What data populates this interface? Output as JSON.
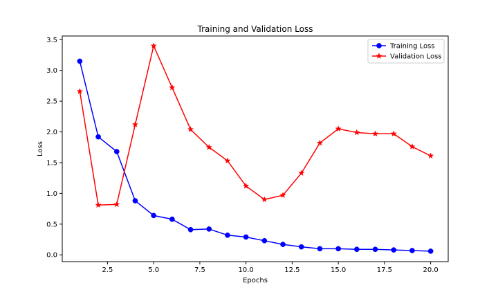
{
  "chart_data": {
    "type": "line",
    "title": "Training and Validation Loss",
    "xlabel": "Epochs",
    "ylabel": "Loss",
    "xlim": [
      0.05,
      20.95
    ],
    "ylim": [
      -0.11,
      3.56
    ],
    "x": [
      1,
      2,
      3,
      4,
      5,
      6,
      7,
      8,
      9,
      10,
      11,
      12,
      13,
      14,
      15,
      16,
      17,
      18,
      19,
      20
    ],
    "xticks": [
      2.5,
      5.0,
      7.5,
      10.0,
      12.5,
      15.0,
      17.5,
      20.0
    ],
    "xtick_labels": [
      "2.5",
      "5.0",
      "7.5",
      "10.0",
      "12.5",
      "15.0",
      "17.5",
      "20.0"
    ],
    "yticks": [
      0.0,
      0.5,
      1.0,
      1.5,
      2.0,
      2.5,
      3.0,
      3.5
    ],
    "ytick_labels": [
      "0.0",
      "0.5",
      "1.0",
      "1.5",
      "2.0",
      "2.5",
      "3.0",
      "3.5"
    ],
    "grid": false,
    "legend_position": "top-right",
    "series": [
      {
        "name": "Training Loss",
        "color": "#0000ff",
        "marker": "circle",
        "values": [
          3.15,
          1.92,
          1.68,
          0.88,
          0.64,
          0.58,
          0.41,
          0.42,
          0.32,
          0.29,
          0.23,
          0.17,
          0.13,
          0.1,
          0.1,
          0.09,
          0.09,
          0.08,
          0.07,
          0.06
        ]
      },
      {
        "name": "Validation Loss",
        "color": "#ff0000",
        "marker": "star",
        "values": [
          2.66,
          0.81,
          0.82,
          2.12,
          3.4,
          2.72,
          2.04,
          1.75,
          1.53,
          1.12,
          0.9,
          0.97,
          1.33,
          1.82,
          2.05,
          1.99,
          1.97,
          1.97,
          1.76,
          1.61
        ]
      }
    ]
  }
}
